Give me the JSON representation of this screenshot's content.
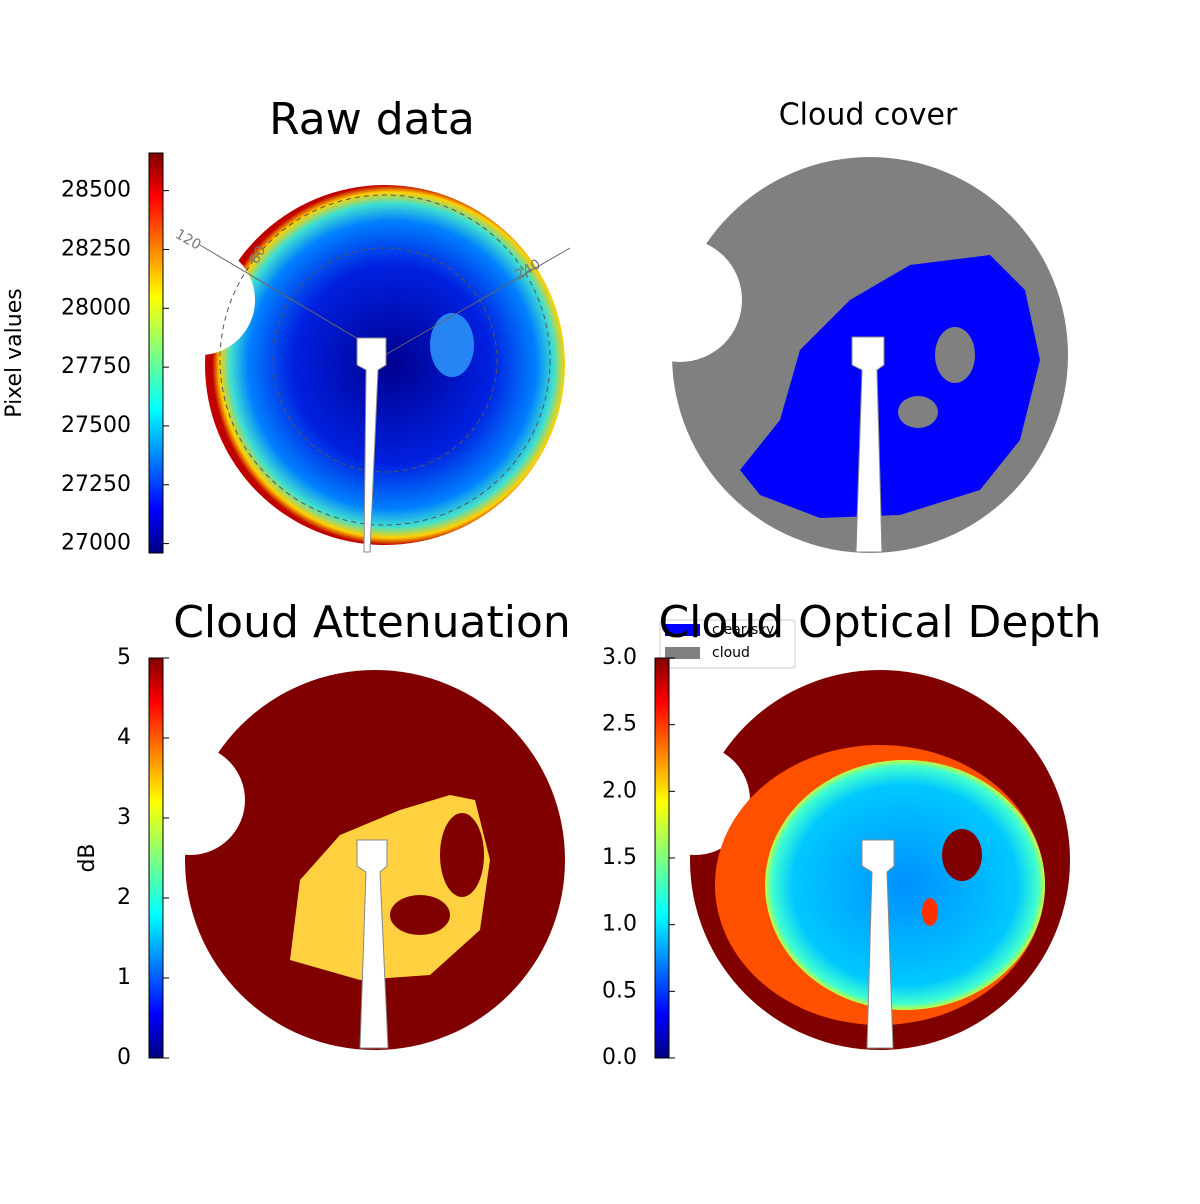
{
  "chart_data": [
    {
      "type": "image",
      "title": "Raw data",
      "colorbar": {
        "label": "Pixel values",
        "ylim": [
          26960,
          28660
        ],
        "yticks": [
          27000,
          27250,
          27500,
          27750,
          28000,
          28250,
          28500
        ]
      },
      "annotations": [
        "120",
        "80",
        "240"
      ]
    },
    {
      "type": "image",
      "title": "Cloud cover",
      "series": [
        {
          "name": "clear sky",
          "color": "#0000ff"
        },
        {
          "name": "cloud",
          "color": "#808080"
        }
      ]
    },
    {
      "type": "image",
      "title": "Cloud Attenuation",
      "colorbar": {
        "label": "dB",
        "ylim": [
          0,
          5
        ],
        "yticks": [
          0,
          1,
          2,
          3,
          4,
          5
        ]
      }
    },
    {
      "type": "image",
      "title": "Cloud Optical Depth",
      "colorbar": {
        "ylim": [
          0,
          3
        ],
        "yticks": [
          {
            "value": 0,
            "label": "0.0"
          },
          0.5,
          {
            "value": 1,
            "label": "1.0"
          },
          1.5,
          {
            "value": 2,
            "label": "2.0"
          },
          2.5,
          {
            "value": 3,
            "label": "3.0"
          }
        ]
      }
    }
  ]
}
